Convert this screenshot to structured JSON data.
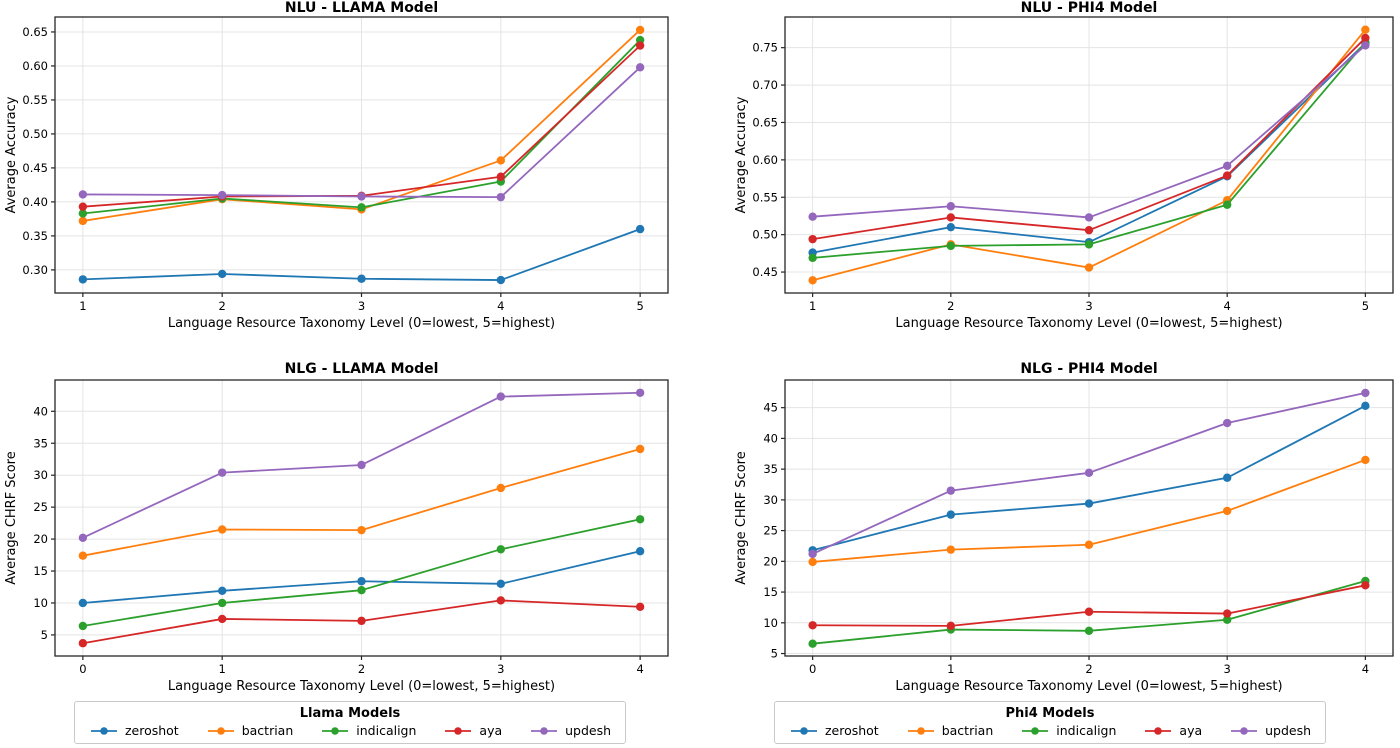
{
  "palette": {
    "zeroshot": "#1f77b4",
    "bactrian": "#ff7f0e",
    "indicalign": "#2ca02c",
    "aya": "#d62728",
    "updesh": "#9467bd"
  },
  "style": {
    "grid_color": "#e4e4e4",
    "spine_color": "#262626",
    "text_color": "#000000",
    "background": "#ffffff"
  },
  "chart_data": [
    {
      "type": "line",
      "title": "NLU - LLAMA Model",
      "xlabel": "Language Resource Taxonomy Level (0=lowest, 5=highest)",
      "ylabel": "Average Accuracy",
      "grid": true,
      "x": [
        1,
        2,
        3,
        4,
        5
      ],
      "xticks": [
        1,
        2,
        3,
        4,
        5
      ],
      "xlim": [
        0.8,
        5.2
      ],
      "ylim": [
        0.266,
        0.672
      ],
      "yticks": [
        0.3,
        0.35,
        0.4,
        0.45,
        0.5,
        0.55,
        0.6,
        0.65
      ],
      "ytick_decimals": 2,
      "series": [
        {
          "name": "zeroshot",
          "values": [
            0.286,
            0.294,
            0.287,
            0.285,
            0.36
          ]
        },
        {
          "name": "bactrian",
          "values": [
            0.372,
            0.404,
            0.389,
            0.461,
            0.653
          ]
        },
        {
          "name": "indicalign",
          "values": [
            0.383,
            0.405,
            0.392,
            0.43,
            0.638
          ]
        },
        {
          "name": "aya",
          "values": [
            0.393,
            0.408,
            0.409,
            0.437,
            0.63
          ]
        },
        {
          "name": "updesh",
          "values": [
            0.411,
            0.41,
            0.408,
            0.407,
            0.598
          ]
        }
      ]
    },
    {
      "type": "line",
      "title": "NLU - PHI4 Model",
      "xlabel": "Language Resource Taxonomy Level (0=lowest, 5=highest)",
      "ylabel": "Average Accuracy",
      "grid": true,
      "x": [
        1,
        2,
        3,
        4,
        5
      ],
      "xticks": [
        1,
        2,
        3,
        4,
        5
      ],
      "xlim": [
        0.8,
        5.2
      ],
      "ylim": [
        0.422,
        0.791
      ],
      "yticks": [
        0.45,
        0.5,
        0.55,
        0.6,
        0.65,
        0.7,
        0.75
      ],
      "ytick_decimals": 2,
      "series": [
        {
          "name": "zeroshot",
          "values": [
            0.476,
            0.51,
            0.49,
            0.578,
            0.756
          ]
        },
        {
          "name": "bactrian",
          "values": [
            0.439,
            0.487,
            0.456,
            0.546,
            0.774
          ]
        },
        {
          "name": "indicalign",
          "values": [
            0.469,
            0.485,
            0.487,
            0.54,
            0.757
          ]
        },
        {
          "name": "aya",
          "values": [
            0.494,
            0.523,
            0.506,
            0.579,
            0.763
          ]
        },
        {
          "name": "updesh",
          "values": [
            0.524,
            0.538,
            0.523,
            0.592,
            0.753
          ]
        }
      ]
    },
    {
      "type": "line",
      "title": "NLG - LLAMA Model",
      "xlabel": "Language Resource Taxonomy Level (0=lowest, 5=highest)",
      "ylabel": "Average CHRF Score",
      "grid": true,
      "x": [
        0,
        1,
        2,
        3,
        4
      ],
      "xticks": [
        0,
        1,
        2,
        3,
        4
      ],
      "xlim": [
        -0.2,
        4.2
      ],
      "ylim": [
        1.7,
        44.9
      ],
      "yticks": [
        5,
        10,
        15,
        20,
        25,
        30,
        35,
        40
      ],
      "ytick_decimals": 0,
      "series": [
        {
          "name": "zeroshot",
          "values": [
            10.0,
            11.9,
            13.4,
            13.0,
            18.1
          ]
        },
        {
          "name": "bactrian",
          "values": [
            17.4,
            21.5,
            21.4,
            28.0,
            34.1
          ]
        },
        {
          "name": "indicalign",
          "values": [
            6.4,
            10.0,
            12.0,
            18.4,
            23.1
          ]
        },
        {
          "name": "aya",
          "values": [
            3.7,
            7.5,
            7.2,
            10.4,
            9.4
          ]
        },
        {
          "name": "updesh",
          "values": [
            20.2,
            30.4,
            31.6,
            42.3,
            42.9
          ]
        }
      ]
    },
    {
      "type": "line",
      "title": "NLG - PHI4 Model",
      "xlabel": "Language Resource Taxonomy Level (0=lowest, 5=highest)",
      "ylabel": "Average CHRF Score",
      "grid": true,
      "x": [
        0,
        1,
        2,
        3,
        4
      ],
      "xticks": [
        0,
        1,
        2,
        3,
        4
      ],
      "xlim": [
        -0.2,
        4.2
      ],
      "ylim": [
        4.6,
        49.5
      ],
      "yticks": [
        5,
        10,
        15,
        20,
        25,
        30,
        35,
        40,
        45
      ],
      "ytick_decimals": 0,
      "series": [
        {
          "name": "zeroshot",
          "values": [
            21.8,
            27.6,
            29.4,
            33.6,
            45.3
          ]
        },
        {
          "name": "bactrian",
          "values": [
            19.9,
            21.9,
            22.7,
            28.2,
            36.5
          ]
        },
        {
          "name": "indicalign",
          "values": [
            6.6,
            8.9,
            8.7,
            10.5,
            16.8
          ]
        },
        {
          "name": "aya",
          "values": [
            9.6,
            9.5,
            11.8,
            11.5,
            16.1
          ]
        },
        {
          "name": "updesh",
          "values": [
            21.2,
            31.5,
            34.4,
            42.5,
            47.4
          ]
        }
      ]
    }
  ],
  "legends": [
    {
      "title": "Llama Models",
      "entries": [
        {
          "label": "zeroshot"
        },
        {
          "label": "bactrian"
        },
        {
          "label": "indicalign"
        },
        {
          "label": "aya"
        },
        {
          "label": "updesh"
        }
      ]
    },
    {
      "title": "Phi4 Models",
      "entries": [
        {
          "label": "zeroshot"
        },
        {
          "label": "bactrian"
        },
        {
          "label": "indicalign"
        },
        {
          "label": "aya"
        },
        {
          "label": "updesh"
        }
      ]
    }
  ]
}
